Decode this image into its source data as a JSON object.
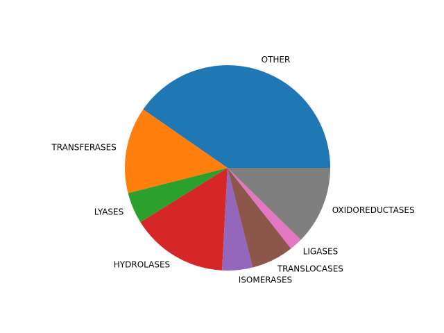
{
  "chart_data": {
    "type": "pie",
    "title": "",
    "start_angle_deg": 0,
    "direction": "counterclockwise",
    "slices": [
      {
        "label": "OTHER",
        "value": 41.2,
        "color": "#1f77b4"
      },
      {
        "label": "TRANSFERASES",
        "value": 13.9,
        "color": "#ff7f0e"
      },
      {
        "label": "LYASES",
        "value": 5.0,
        "color": "#2ca02c"
      },
      {
        "label": "HYDROLASES",
        "value": 15.6,
        "color": "#d62728"
      },
      {
        "label": "ISOMERASES",
        "value": 4.9,
        "color": "#9467bd"
      },
      {
        "label": "TRANSLOCASES",
        "value": 6.8,
        "color": "#8c564b"
      },
      {
        "label": "LIGASES",
        "value": 2.1,
        "color": "#e377c2"
      },
      {
        "label": "OXIDOREDUCTASES",
        "value": 12.6,
        "color": "#7f7f7f"
      }
    ]
  }
}
